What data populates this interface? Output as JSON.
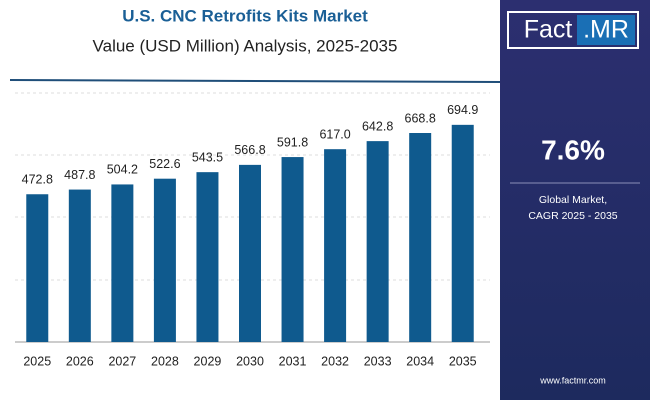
{
  "chart_data": {
    "type": "bar",
    "title": "U.S. CNC Retrofits Kits Market",
    "subtitle": "Value (USD Million) Analysis, 2025-2035",
    "categories": [
      "2025",
      "2026",
      "2027",
      "2028",
      "2029",
      "2030",
      "2031",
      "2032",
      "2033",
      "2034",
      "2035"
    ],
    "values": [
      472.8,
      487.8,
      504.2,
      522.6,
      543.5,
      566.8,
      591.8,
      617.0,
      642.8,
      668.8,
      694.9
    ],
    "value_labels": [
      "472.8",
      "487.8",
      "504.2",
      "522.6",
      "543.5",
      "566.8",
      "591.8",
      "617.0",
      "642.8",
      "668.8",
      "694.9"
    ],
    "color": "#0f5a8e",
    "ylim": [
      0,
      800
    ]
  },
  "panel": {
    "logo_left": "Fact",
    "logo_right": ".MR",
    "cagr": "7.6%",
    "cagr_line1": "Global Market,",
    "cagr_line2": "CAGR 2025 - 2035",
    "website": "www.factmr.com"
  }
}
